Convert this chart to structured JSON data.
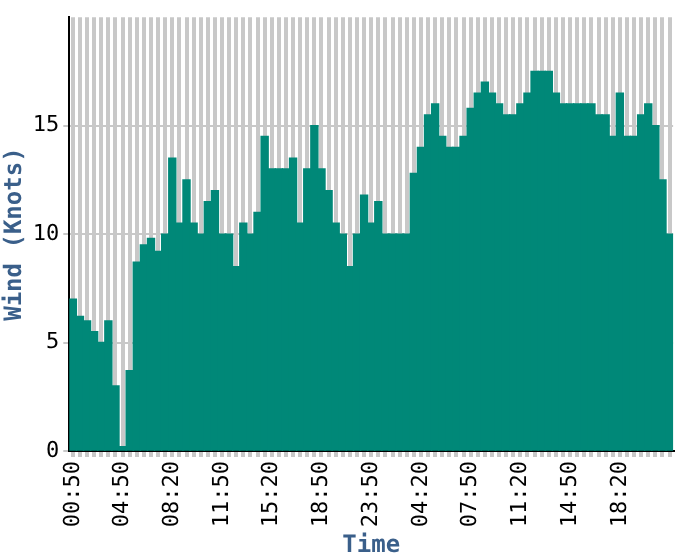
{
  "chart_data": {
    "type": "bar",
    "xlabel": "Time",
    "ylabel": "Wind (Knots)",
    "categories": [
      "00:50",
      null,
      null,
      null,
      null,
      null,
      null,
      "04:50",
      null,
      null,
      null,
      null,
      null,
      null,
      "08:20",
      null,
      null,
      null,
      null,
      null,
      null,
      "11:50",
      null,
      null,
      null,
      null,
      null,
      null,
      "15:20",
      null,
      null,
      null,
      null,
      null,
      null,
      "18:50",
      null,
      null,
      null,
      null,
      null,
      null,
      "23:50",
      null,
      null,
      null,
      null,
      null,
      null,
      "04:20",
      null,
      null,
      null,
      null,
      null,
      null,
      "07:50",
      null,
      null,
      null,
      null,
      null,
      null,
      "11:20",
      null,
      null,
      null,
      null,
      null,
      null,
      "14:50",
      null,
      null,
      null,
      null,
      null,
      null,
      "18:20",
      null,
      null,
      null,
      null,
      null,
      null,
      null
    ],
    "values": [
      7,
      6.2,
      6,
      5.5,
      5,
      6,
      3,
      0.2,
      3.7,
      8.7,
      9.5,
      9.8,
      9.2,
      10,
      13.5,
      10.5,
      12.5,
      10.5,
      10,
      11.5,
      12,
      10,
      10,
      8.5,
      10.5,
      10,
      11,
      14.5,
      13,
      13,
      13,
      13.5,
      10.5,
      13,
      15,
      13,
      12,
      10.5,
      10,
      8.5,
      10,
      11.8,
      10.5,
      11.5,
      10,
      10,
      10,
      10,
      12.8,
      14,
      15.5,
      16,
      14.5,
      14,
      14,
      14.5,
      15.8,
      16.5,
      17,
      16.5,
      16,
      15.5,
      15.5,
      16,
      16.5,
      17.5,
      17.5,
      17.5,
      16.5,
      16,
      16,
      16,
      16,
      16,
      15.5,
      15.5,
      14.5,
      16.5,
      14.5,
      14.5,
      15.5,
      16,
      15,
      12.5,
      10
    ],
    "color": "#008878",
    "ylim": [
      0,
      20
    ],
    "yticks": [
      0,
      5,
      10,
      15
    ],
    "grid": true
  }
}
